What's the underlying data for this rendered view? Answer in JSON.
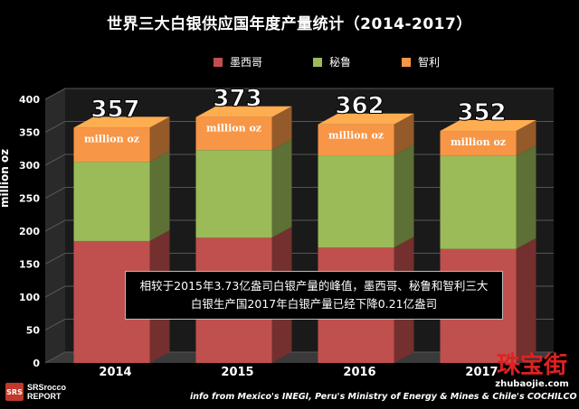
{
  "title": "世界三大白银供应国年度产量统计（2014-2017）",
  "legend": [
    {
      "name": "墨西哥",
      "color": "#c0504d"
    },
    {
      "name": "秘鲁",
      "color": "#9bbb59"
    },
    {
      "name": "智利",
      "color": "#f79646"
    }
  ],
  "note": "相较于2015年3.73亿盎司白银产量的峰值，墨西哥、秘鲁和智利三大白银生产国2017年白银产量已经下降0.21亿盎司",
  "source": "info from Mexico's INEGI, Peru's Ministry of Energy & Mines & Chile's COCHILCO",
  "logo": {
    "line1": "SRSrocco",
    "line2": "REPORT"
  },
  "watermark": {
    "cn": "珠宝街",
    "en": "zhubaojie.com"
  },
  "chart_data": {
    "type": "bar",
    "stacked": true,
    "categories": [
      "2014",
      "2015",
      "2016",
      "2017"
    ],
    "series": [
      {
        "name": "墨西哥",
        "values": [
          185,
          190,
          175,
          173
        ],
        "color": "#c0504d"
      },
      {
        "name": "秘鲁",
        "values": [
          120,
          133,
          140,
          141
        ],
        "color": "#9bbb59"
      },
      {
        "name": "智利",
        "values": [
          52,
          50,
          47,
          38
        ],
        "color": "#f79646"
      }
    ],
    "totals": [
      "357",
      "373",
      "362",
      "352"
    ],
    "bar_label": "million oz",
    "ylabel": "million oz",
    "ylim": [
      0,
      400
    ],
    "yticks": [
      0,
      50,
      100,
      150,
      200,
      250,
      300,
      350,
      400
    ],
    "grid": true
  }
}
